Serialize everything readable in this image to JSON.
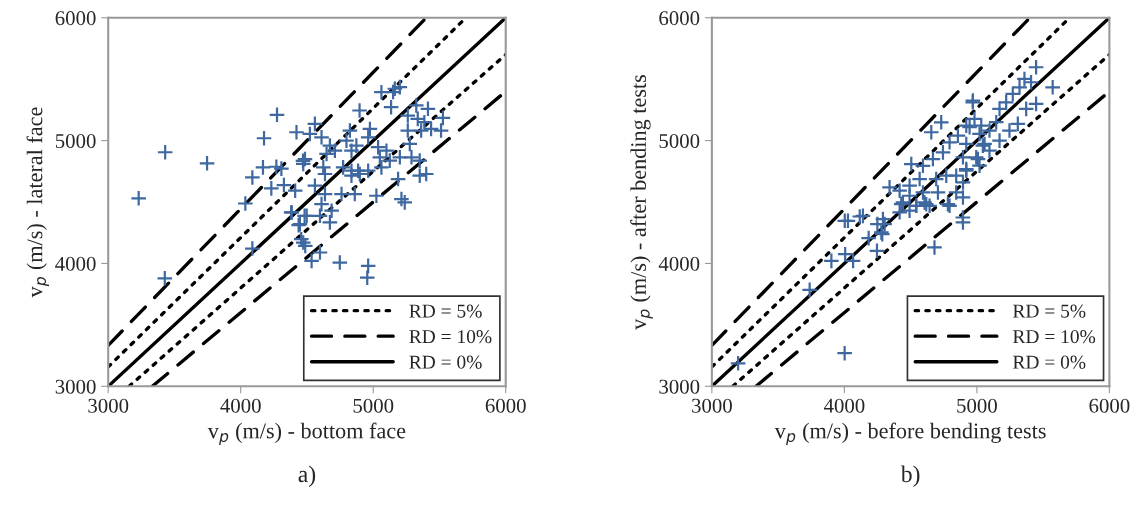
{
  "chart_data": [
    {
      "type": "scatter",
      "xlabel": "v$_{p}$ (m/s) - bottom face",
      "ylabel": "v$_{p}$ (m/s) - lateral face",
      "annotations": [
        "a)"
      ],
      "xlim": [
        3000,
        6000
      ],
      "ylim": [
        3000,
        6000
      ],
      "xticks": [
        3000,
        4000,
        5000,
        6000
      ],
      "yticks": [
        3000,
        4000,
        5000,
        6000
      ],
      "grid": false,
      "legend": "bottom right",
      "series": [
        {
          "marker": "cross",
          "color": "#3f68a0",
          "x": [
            3230,
            3430,
            3746,
            4274,
            4176,
            4421,
            4088,
            4168,
            4269,
            4307,
            4231,
            4326,
            4411,
            4035,
            4381,
            4482,
            4437,
            4457,
            4487,
            4088,
            3427,
            4470,
            5163,
            5201,
            5150,
            5062,
            5325,
            5413,
            5526,
            4897,
            5135,
            5261,
            5336,
            5386,
            5437,
            5512,
            5362,
            5261,
            4560,
            4522,
            4824,
            4975,
            4962,
            4610,
            4673,
            4711,
            4648,
            4798,
            4873,
            4836,
            5037,
            5100,
            5050,
            5125,
            5201,
            5289,
            5276,
            5351,
            5351,
            5400,
            4485,
            4472,
            4623,
            4636,
            4773,
            4836,
            4899,
            4836,
            4886,
            4962,
            5062,
            5188,
            4560,
            4636,
            4761,
            4861,
            5024,
            5213,
            5238,
            4610,
            4686,
            4385,
            4498,
            4673,
            4598,
            4447,
            4472,
            4598,
            4535,
            4748,
            4962,
            4955
          ],
          "values": [
            4530,
            4905,
            4815,
            5210,
            5019,
            5068,
            4700,
            4782,
            4787,
            4772,
            4611,
            4638,
            4592,
            4488,
            4415,
            4388,
            4312,
            4197,
            4143,
            4121,
            3879,
            4835,
            5422,
            5435,
            5395,
            5394,
            5286,
            5259,
            5185,
            5245,
            5272,
            5204,
            5177,
            5150,
            5095,
            5082,
            5082,
            5082,
            5136,
            5054,
            5082,
            5095,
            5027,
            5027,
            4959,
            4918,
            4891,
            5000,
            4959,
            4918,
            4946,
            4918,
            4864,
            4837,
            4864,
            4864,
            4973,
            4837,
            4714,
            4728,
            4850,
            4810,
            4782,
            4728,
            4782,
            4755,
            4728,
            4714,
            4755,
            4755,
            4782,
            4687,
            4633,
            4565,
            4565,
            4565,
            4551,
            4524,
            4497,
            4483,
            4429,
            4415,
            4388,
            4334,
            4388,
            4320,
            4170,
            4089,
            4021,
            4007,
            3980,
            3884
          ]
        },
        {
          "type": "line",
          "name": "RD = 5%",
          "line_style": "dotted",
          "color": "#000000",
          "x": [
            3000,
            5700
          ],
          "values": [
            3158,
            6000
          ]
        },
        {
          "type": "line",
          "line_style": "dotted",
          "color": "#000000",
          "x": [
            3158,
            6000
          ],
          "values": [
            3000,
            5700
          ]
        },
        {
          "type": "line",
          "name": "RD = 10%",
          "line_style": "dashed",
          "color": "#000000",
          "x": [
            3000,
            5400
          ],
          "values": [
            3333,
            6000
          ]
        },
        {
          "type": "line",
          "line_style": "dashed",
          "color": "#000000",
          "x": [
            3333,
            6000
          ],
          "values": [
            3000,
            5400
          ]
        },
        {
          "type": "line",
          "name": "RD = 0%",
          "line_style": "solid",
          "color": "#000000",
          "x": [
            3000,
            6000
          ],
          "values": [
            3000,
            6000
          ]
        }
      ]
    },
    {
      "type": "scatter",
      "xlabel": "v$_{p}$ (m/s) - before bending tests",
      "ylabel": "v$_{p}$ (m/s) - after bending tests",
      "annotations": [
        "b)"
      ],
      "xlim": [
        3000,
        6000
      ],
      "ylim": [
        3000,
        6000
      ],
      "xticks": [
        3000,
        4000,
        5000,
        6000
      ],
      "yticks": [
        3000,
        4000,
        5000,
        6000
      ],
      "grid": false,
      "legend": "bottom right",
      "series": [
        {
          "marker": "cross",
          "color": "#3f68a0",
          "x": [
            3198,
            4002,
            3738,
            3902,
            4006,
            4066,
            4246,
            4183,
            4286,
            4003,
            4116,
            4249,
            4291,
            4680,
            4417,
            4429,
            4492,
            4542,
            4605,
            4643,
            4781,
            4969,
            4731,
            4656,
            4505,
            4593,
            4341,
            4442,
            4027,
            4140,
            4304,
            4279,
            4894,
            4794,
            4706,
            4844,
            4618,
            4668,
            4744,
            4794,
            4857,
            4920,
            4982,
            5033,
            5045,
            5008,
            4920,
            4844,
            4769,
            4693,
            4568,
            4492,
            4417,
            4492,
            4593,
            4543,
            5447,
            5572,
            5359,
            5409,
            5322,
            5271,
            4970,
            5221,
            5171,
            5372,
            5447,
            5309,
            5246,
            5146,
            5095,
            5020,
            4945,
            5171,
            5058,
            4920,
            4895,
            4995,
            5095,
            5020,
            4920,
            4895,
            4895,
            4895
          ],
          "values": [
            3187,
            3269,
            3785,
            4021,
            4075,
            4021,
            4103,
            4206,
            4238,
            4347,
            4382,
            4320,
            4361,
            4130,
            4416,
            4483,
            4429,
            4469,
            4497,
            4469,
            4483,
            5312,
            5149,
            5068,
            4809,
            4795,
            4619,
            4497,
            4347,
            4387,
            4320,
            4252,
            4374,
            4469,
            4578,
            4578,
            4482,
            4850,
            4904,
            4986,
            5040,
            5122,
            5176,
            5122,
            4959,
            4850,
            4768,
            4714,
            4714,
            4687,
            4687,
            4633,
            4592,
            4551,
            4578,
            4469,
            5597,
            5434,
            5502,
            5475,
            5434,
            5380,
            5326,
            5312,
            5258,
            5258,
            5299,
            5136,
            5082,
            5150,
            5082,
            5054,
            5109,
            5000,
            4973,
            4973,
            4864,
            4864,
            4918,
            4796,
            4755,
            4660,
            4537,
            4334
          ]
        },
        {
          "type": "line",
          "name": "RD = 5%",
          "line_style": "dotted",
          "color": "#000000",
          "x": [
            3000,
            5700
          ],
          "values": [
            3158,
            6000
          ]
        },
        {
          "type": "line",
          "line_style": "dotted",
          "color": "#000000",
          "x": [
            3158,
            6000
          ],
          "values": [
            3000,
            5700
          ]
        },
        {
          "type": "line",
          "name": "RD = 10%",
          "line_style": "dashed",
          "color": "#000000",
          "x": [
            3000,
            5400
          ],
          "values": [
            3333,
            6000
          ]
        },
        {
          "type": "line",
          "line_style": "dashed",
          "color": "#000000",
          "x": [
            3333,
            6000
          ],
          "values": [
            3000,
            5400
          ]
        },
        {
          "type": "line",
          "name": "RD = 0%",
          "line_style": "solid",
          "color": "#000000",
          "x": [
            3000,
            6000
          ],
          "values": [
            3000,
            6000
          ]
        }
      ]
    }
  ]
}
